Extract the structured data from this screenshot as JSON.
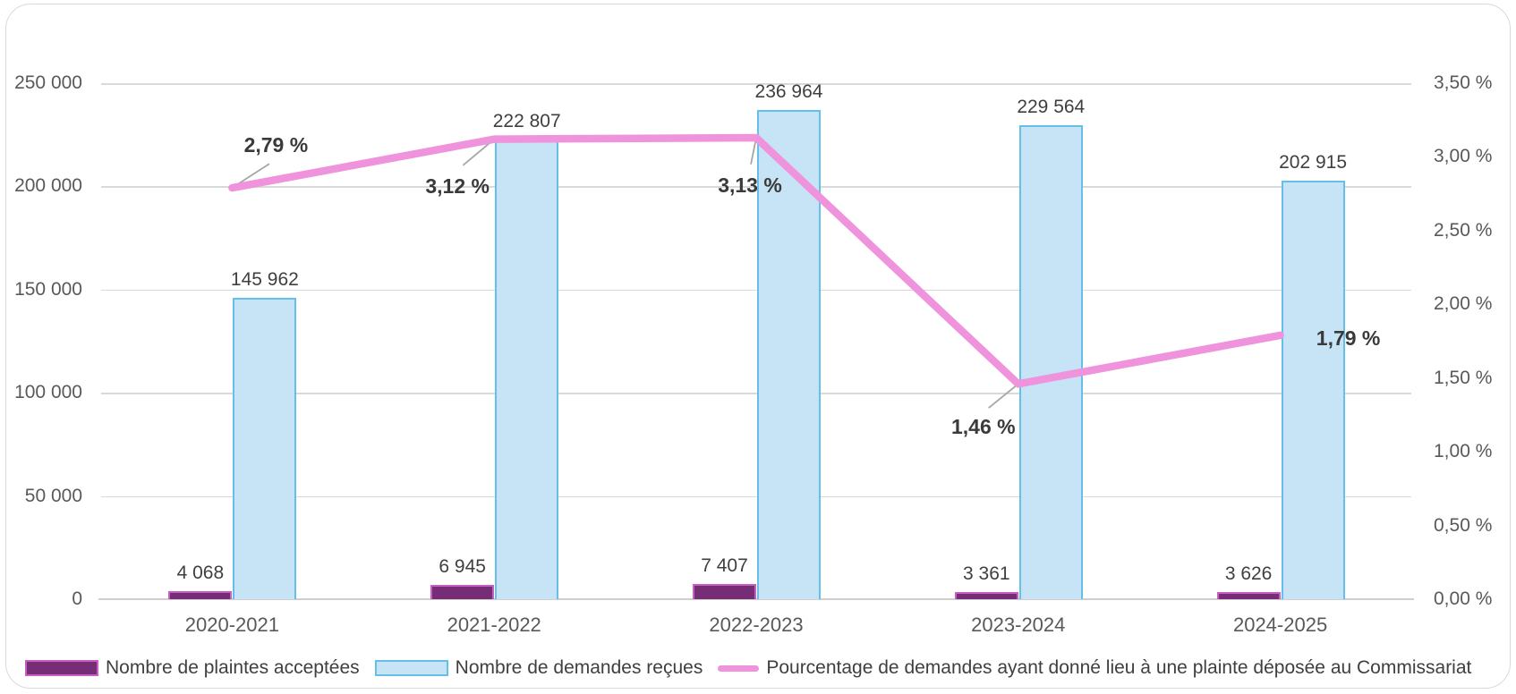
{
  "chart_data": {
    "type": "combo",
    "title": "",
    "categories": [
      "2020-2021",
      "2021-2022",
      "2022-2023",
      "2023-2024",
      "2024-2025"
    ],
    "series": [
      {
        "name": "Nombre de plaintes acceptées",
        "type": "bar",
        "axis": "left",
        "fill_color": "#772D76",
        "border_color": "#C75FC3",
        "values": [
          4068,
          6945,
          7407,
          3361,
          3626
        ],
        "labels": [
          "4 068",
          "6 945",
          "7 407",
          "3 361",
          "3 626"
        ]
      },
      {
        "name": "Nombre de demandes reçues",
        "type": "bar",
        "axis": "left",
        "fill_color": "#C6E4F6",
        "border_color": "#66BFE9",
        "values": [
          145962,
          222807,
          236964,
          229564,
          202915
        ],
        "labels": [
          "145 962",
          "222 807",
          "236 964",
          "229 564",
          "202 915"
        ]
      },
      {
        "name": "Pourcentage de demandes ayant donné lieu à une plainte déposée au Commissariat",
        "type": "line",
        "axis": "right",
        "line_color": "#EE93DC",
        "values": [
          2.79,
          3.12,
          3.13,
          1.46,
          1.79
        ],
        "labels": [
          "2,79 %",
          "3,12 %",
          "3,13 %",
          "1,46 %",
          "1,79 %"
        ]
      }
    ],
    "axis_left": {
      "min": 0,
      "max": 250000,
      "ticks": [
        {
          "value": 250000,
          "label": "250 000"
        },
        {
          "value": 200000,
          "label": "200 000"
        },
        {
          "value": 150000,
          "label": "150 000"
        },
        {
          "value": 100000,
          "label": "100 000"
        },
        {
          "value": 50000,
          "label": "50 000"
        },
        {
          "value": 0,
          "label": "0"
        }
      ]
    },
    "axis_right": {
      "min": 0,
      "max": 3.5,
      "ticks": [
        {
          "value": 3.5,
          "label": "3,50 %"
        },
        {
          "value": 3.0,
          "label": "3,00 %"
        },
        {
          "value": 2.5,
          "label": "2,50 %"
        },
        {
          "value": 2.0,
          "label": "2,00 %"
        },
        {
          "value": 1.5,
          "label": "1,50 %"
        },
        {
          "value": 1.0,
          "label": "1,00 %"
        },
        {
          "value": 0.5,
          "label": "0,50 %"
        },
        {
          "value": 0.0,
          "label": "0,00 %"
        }
      ]
    },
    "grid": true,
    "gridline_color": "#D9D9D9",
    "leader_line_color": "#A6A6A6",
    "legend_position": "bottom"
  }
}
